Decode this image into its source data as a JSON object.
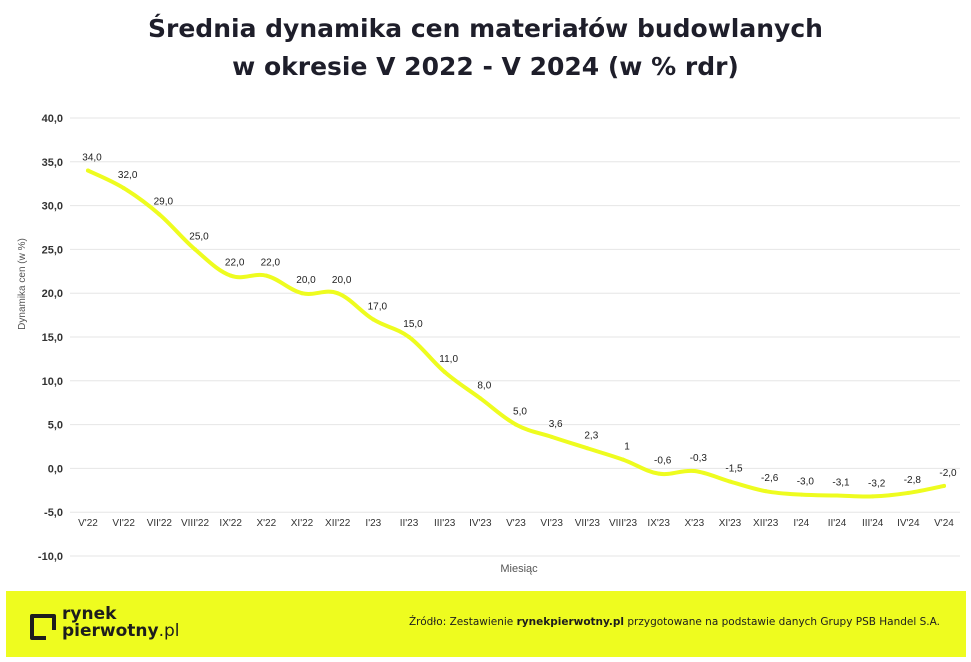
{
  "title_line1": "Średnia dynamika cen materiałów budowlanych",
  "title_line2": "w okresie V 2022 - V 2024 (w % rdr)",
  "footer": {
    "logo_line1": "rynek",
    "logo_line2_main": "pierwotny",
    "logo_line2_suffix": ".pl",
    "source_prefix": "Źródło: Zestawienie ",
    "source_bold": "rynekpierwotny.pl",
    "source_suffix": " przygotowane na podstawie danych Grupy PSB Handel S.A."
  },
  "colors": {
    "line": "#eefc1f",
    "footer_bg": "#eefc1f",
    "grid": "#e6e6e6"
  },
  "chart_data": {
    "type": "line",
    "xlabel": "Miesiąc",
    "ylabel": "Dynamika cen (w %)",
    "ylim": [
      -10,
      40
    ],
    "yticks": [
      "-10,0",
      "-5,0",
      "0,0",
      "5,0",
      "10,0",
      "15,0",
      "20,0",
      "25,0",
      "30,0",
      "35,0",
      "40,0"
    ],
    "grid": true,
    "categories": [
      "V'22",
      "VI'22",
      "VII'22",
      "VIII'22",
      "IX'22",
      "X'22",
      "XI'22",
      "XII'22",
      "I'23",
      "II'23",
      "III'23",
      "IV'23",
      "V'23",
      "VI'23",
      "VII'23",
      "VIII'23",
      "IX'23",
      "X'23",
      "XI'23",
      "XII'23",
      "I'24",
      "II'24",
      "III'24",
      "IV'24",
      "V'24"
    ],
    "values": [
      34.0,
      32.0,
      29.0,
      25.0,
      22.0,
      22.0,
      20.0,
      20.0,
      17.0,
      15.0,
      11.0,
      8.0,
      5.0,
      3.6,
      2.3,
      1,
      -0.6,
      -0.3,
      -1.5,
      -2.6,
      -3.0,
      -3.1,
      -3.2,
      -2.8,
      -2.0
    ],
    "labels": [
      "34,0",
      "32,0",
      "29,0",
      "25,0",
      "22,0",
      "22,0",
      "20,0",
      "20,0",
      "17,0",
      "15,0",
      "11,0",
      "8,0",
      "5,0",
      "3,6",
      "2,3",
      "1",
      "-0,6",
      "-0,3",
      "-1,5",
      "-2,6",
      "-3,0",
      "-3,1",
      "-3,2",
      "-2,8",
      "-2,0"
    ]
  }
}
